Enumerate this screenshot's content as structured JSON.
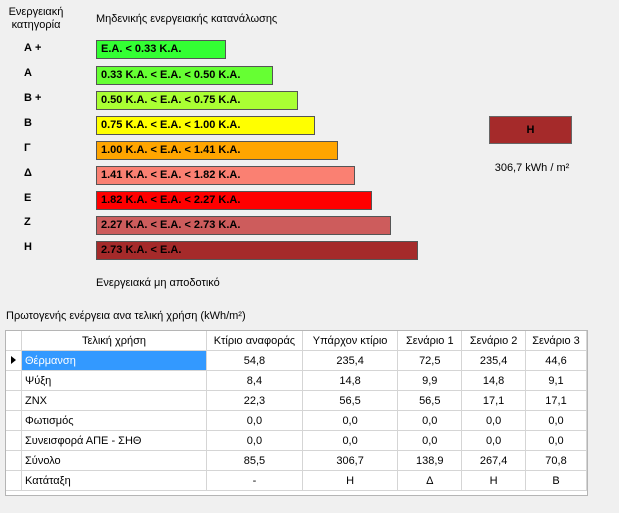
{
  "rating": {
    "header_line1": "Ενεργειακή",
    "header_line2": "κατηγορία",
    "best_label": "Μηδενικής ενεργειακής κατανάλωσης",
    "worst_label": "Ενεργειακά μη αποδοτικό",
    "categories": [
      {
        "label": "Α +",
        "range": "Ε.Α. < 0.33 Κ.Α.",
        "color": "#33ff33"
      },
      {
        "label": "Α",
        "range": "0.33 Κ.Α. <  Ε.Α. < 0.50 Κ.Α.",
        "color": "#66ff33"
      },
      {
        "label": "Β +",
        "range": "0.50 Κ.Α. <  Ε.Α. < 0.75 Κ.Α.",
        "color": "#aaff33"
      },
      {
        "label": "Β",
        "range": "0.75 Κ.Α. <  Ε.Α. < 1.00 Κ.Α.",
        "color": "#ffff00"
      },
      {
        "label": "Γ",
        "range": "1.00 Κ.Α. <  Ε.Α. < 1.41 Κ.Α.",
        "color": "#ffa500"
      },
      {
        "label": "Δ",
        "range": "1.41 Κ.Α. <  Ε.Α. < 1.82 Κ.Α.",
        "color": "#fa8072"
      },
      {
        "label": "Ε",
        "range": "1.82 Κ.Α. <  Ε.Α. < 2.27 Κ.Α.",
        "color": "#ff0000"
      },
      {
        "label": "Ζ",
        "range": "2.27 Κ.Α. <  Ε.Α. < 2.73 Κ.Α.",
        "color": "#cd5c5c"
      },
      {
        "label": "Η",
        "range": "2.73 Κ.Α. <  Ε.Α.",
        "color": "#a52a2a"
      }
    ],
    "result_category": "Η",
    "result_color": "#a52a2a",
    "result_value": "306,7 kWh / m²"
  },
  "table": {
    "title": "Πρωτογενής ενέργεια ανα τελική χρήση (kWh/m²)",
    "columns": [
      "Τελική χρήση",
      "Κτίριο αναφοράς",
      "Υπάρχον κτίριο",
      "Σενάριο 1",
      "Σενάριο 2",
      "Σενάριο 3"
    ],
    "rows": [
      {
        "name": "Θέρμανση",
        "values": [
          "54,8",
          "235,4",
          "72,5",
          "235,4",
          "44,6"
        ],
        "selected": true
      },
      {
        "name": "Ψύξη",
        "values": [
          "8,4",
          "14,8",
          "9,9",
          "14,8",
          "9,1"
        ]
      },
      {
        "name": "ΖΝΧ",
        "values": [
          "22,3",
          "56,5",
          "56,5",
          "17,1",
          "17,1"
        ]
      },
      {
        "name": "Φωτισμός",
        "values": [
          "0,0",
          "0,0",
          "0,0",
          "0,0",
          "0,0"
        ]
      },
      {
        "name": "Συνεισφορά ΑΠΕ - ΣΗΘ",
        "values": [
          "0,0",
          "0,0",
          "0,0",
          "0,0",
          "0,0"
        ]
      },
      {
        "name": "Σύνολο",
        "values": [
          "85,5",
          "306,7",
          "138,9",
          "267,4",
          "70,8"
        ]
      },
      {
        "name": "Κατάταξη",
        "values": [
          "-",
          "Η",
          "Δ",
          "Η",
          "Β"
        ]
      }
    ]
  }
}
